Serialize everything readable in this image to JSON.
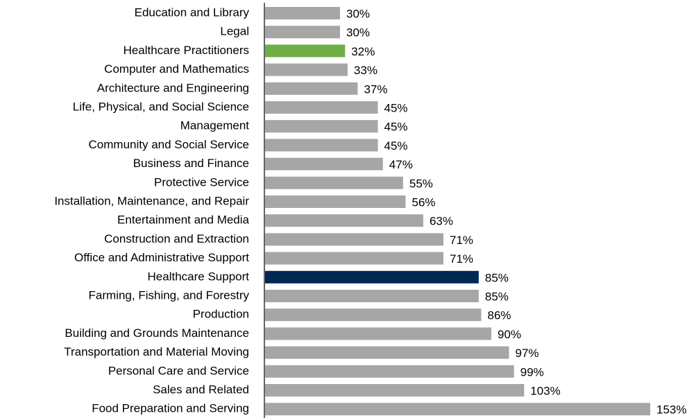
{
  "chart_data": {
    "type": "hbar",
    "categories": [
      "Education and Library",
      "Legal",
      "Healthcare Practitioners",
      "Computer and Mathematics",
      "Architecture and Engineering",
      "Life, Physical, and Social Science",
      "Management",
      "Community and Social Service",
      "Business and Finance",
      "Protective Service",
      "Installation, Maintenance, and Repair",
      "Entertainment and Media",
      "Construction and Extraction",
      "Office and Administrative Support",
      "Healthcare Support",
      "Farming, Fishing, and Forestry",
      "Production",
      "Building and Grounds Maintenance",
      "Transportation and Material Moving",
      "Personal Care and Service",
      "Sales and Related",
      "Food Preparation and Serving"
    ],
    "values": [
      30,
      30,
      32,
      33,
      37,
      45,
      45,
      45,
      47,
      55,
      56,
      63,
      71,
      71,
      85,
      85,
      86,
      90,
      97,
      99,
      103,
      153
    ],
    "value_labels": [
      "30%",
      "30%",
      "32%",
      "33%",
      "37%",
      "45%",
      "45%",
      "45%",
      "47%",
      "55%",
      "56%",
      "63%",
      "71%",
      "71%",
      "85%",
      "85%",
      "86%",
      "90%",
      "97%",
      "99%",
      "103%",
      "153%"
    ],
    "colors": [
      "#a6a6a6",
      "#a6a6a6",
      "#70ad47",
      "#a6a6a6",
      "#a6a6a6",
      "#a6a6a6",
      "#a6a6a6",
      "#a6a6a6",
      "#a6a6a6",
      "#a6a6a6",
      "#a6a6a6",
      "#a6a6a6",
      "#a6a6a6",
      "#a6a6a6",
      "#002855",
      "#a6a6a6",
      "#a6a6a6",
      "#a6a6a6",
      "#a6a6a6",
      "#a6a6a6",
      "#a6a6a6",
      "#a6a6a6"
    ]
  }
}
